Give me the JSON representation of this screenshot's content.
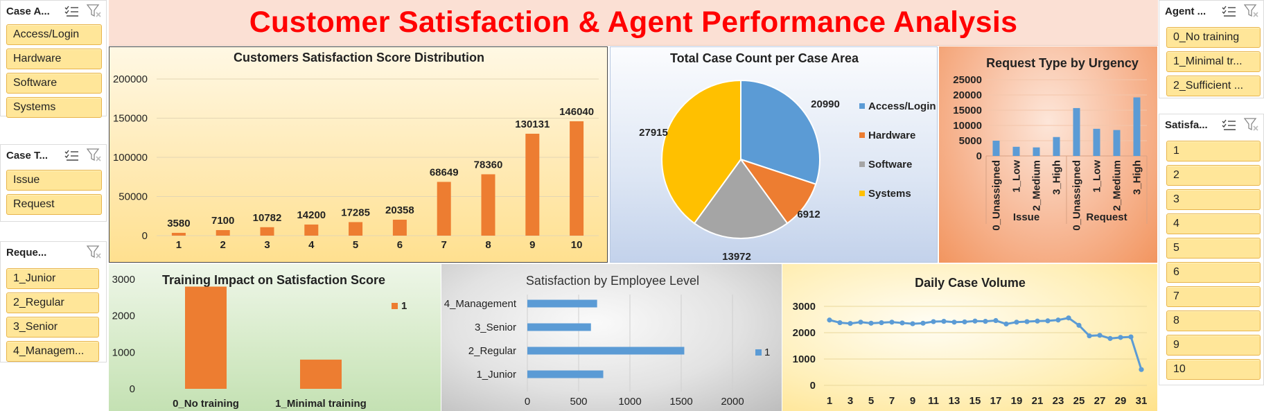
{
  "banner": {
    "title": "Customer Satisfaction & Agent Performance Analysis"
  },
  "slicers": {
    "case_area": {
      "title": "Case A...",
      "items": [
        "Access/Login",
        "Hardware",
        "Software",
        "Systems"
      ]
    },
    "case_type": {
      "title": "Case T...",
      "items": [
        "Issue",
        "Request"
      ]
    },
    "requestor": {
      "title": "Reque...",
      "items": [
        "1_Junior",
        "2_Regular",
        "3_Senior",
        "4_Managem..."
      ]
    },
    "agent": {
      "title": "Agent ...",
      "items": [
        "0_No training",
        "1_Minimal tr...",
        "2_Sufficient ..."
      ]
    },
    "satisfaction": {
      "title": "Satisfa...",
      "items": [
        "1",
        "2",
        "3",
        "4",
        "5",
        "6",
        "7",
        "8",
        "9",
        "10"
      ]
    }
  },
  "icons": {
    "multiselect": "multi-select-icon",
    "clear_filter": "clear-filter-icon"
  },
  "chart_data": [
    {
      "id": "satisfaction_distribution",
      "type": "bar",
      "title": "Customers Satisfaction Score Distribution",
      "categories": [
        "1",
        "2",
        "3",
        "4",
        "5",
        "6",
        "7",
        "8",
        "9",
        "10"
      ],
      "values": [
        3580,
        7100,
        10782,
        14200,
        17285,
        20358,
        68649,
        78360,
        130131,
        146040
      ],
      "yticks": [
        "0",
        "50000",
        "100000",
        "150000",
        "200000"
      ],
      "ylim": [
        0,
        200000
      ],
      "grid": true,
      "color": "#ed7d31"
    },
    {
      "id": "case_area_pie",
      "type": "pie",
      "title": "Total Case Count per Case Area",
      "labels": [
        "Access/Login",
        "Hardware",
        "Software",
        "Systems"
      ],
      "values": [
        20990,
        6912,
        13972,
        27915
      ],
      "colors": [
        "#5b9bd5",
        "#ed7d31",
        "#a5a5a5",
        "#ffc000"
      ],
      "legend": "right"
    },
    {
      "id": "request_type_urgency",
      "type": "bar",
      "title": "Request Type by Urgency",
      "groups": [
        {
          "name": "Issue",
          "categories": [
            "0_Unassigned",
            "1_Low",
            "2_Medium",
            "3_High"
          ],
          "values": [
            5000,
            3000,
            2800,
            6200
          ]
        },
        {
          "name": "Request",
          "categories": [
            "0_Unassigned",
            "1_Low",
            "2_Medium",
            "3_High"
          ],
          "values": [
            15700,
            8900,
            8500,
            19200
          ]
        }
      ],
      "yticks": [
        "0",
        "5000",
        "10000",
        "15000",
        "20000",
        "25000"
      ],
      "ylim": [
        0,
        25000
      ],
      "color": "#5b9bd5"
    },
    {
      "id": "training_impact",
      "type": "bar",
      "title": "Training Impact on Satisfaction Score",
      "categories": [
        "0_No training",
        "1_Minimal training"
      ],
      "values": [
        2800,
        800
      ],
      "yticks": [
        "0",
        "1000",
        "2000",
        "3000"
      ],
      "ylim": [
        0,
        3000
      ],
      "legend_label": "1",
      "color": "#ed7d31"
    },
    {
      "id": "employee_level",
      "type": "bar",
      "orientation": "horizontal",
      "title": "Satisfaction by Employee Level",
      "categories": [
        "1_Junior",
        "2_Regular",
        "3_Senior",
        "4_Management"
      ],
      "values": [
        740,
        1530,
        620,
        680
      ],
      "xticks": [
        "0",
        "500",
        "1000",
        "1500",
        "2000"
      ],
      "xlim": [
        0,
        2000
      ],
      "legend_label": "1",
      "color": "#5b9bd5"
    },
    {
      "id": "daily_case_volume",
      "type": "line",
      "title": "Daily Case Volume",
      "x": [
        1,
        2,
        3,
        4,
        5,
        6,
        7,
        8,
        9,
        10,
        11,
        12,
        13,
        14,
        15,
        16,
        17,
        18,
        19,
        20,
        21,
        22,
        23,
        24,
        25,
        26,
        27,
        28,
        29,
        30,
        31
      ],
      "xticks": [
        "1",
        "3",
        "5",
        "7",
        "9",
        "11",
        "13",
        "15",
        "17",
        "19",
        "21",
        "23",
        "25",
        "27",
        "29",
        "31"
      ],
      "values": [
        2480,
        2380,
        2350,
        2400,
        2360,
        2380,
        2400,
        2370,
        2340,
        2360,
        2420,
        2430,
        2400,
        2410,
        2440,
        2430,
        2460,
        2330,
        2400,
        2420,
        2440,
        2450,
        2480,
        2560,
        2280,
        1880,
        1900,
        1780,
        1820,
        1840,
        600
      ],
      "yticks": [
        "0",
        "1000",
        "2000",
        "3000"
      ],
      "ylim": [
        0,
        3000
      ],
      "color": "#5b9bd5"
    }
  ]
}
